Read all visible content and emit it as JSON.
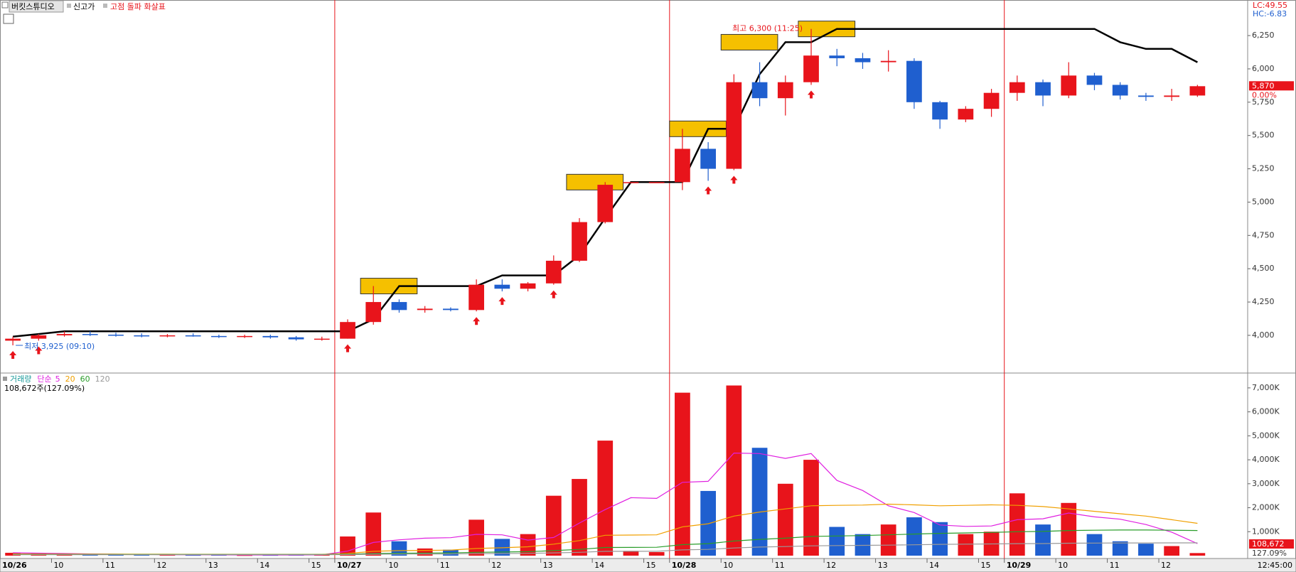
{
  "toolbar": {
    "tabs": [
      "버킷스튜디오",
      "신고가",
      "고점 돌파 화살표"
    ]
  },
  "chart_data": [
    {
      "type": "candlestick",
      "info": [
        "LC:49.55",
        "HC:-6.83"
      ],
      "up_color": "#e8141b",
      "down_color": "#1f5fcf",
      "open": [
        3960,
        3975,
        4000,
        4010,
        4005,
        4000,
        3995,
        4000,
        3995,
        3990,
        3995,
        3985,
        3970,
        3975,
        4100,
        4250,
        4190,
        4200,
        4190,
        4380,
        4350,
        4390,
        4560,
        4850,
        5150,
        5150,
        5150,
        5400,
        5250,
        5900,
        5780,
        5900,
        6100,
        6080,
        6050,
        6060,
        5750,
        5620,
        5700,
        5820,
        5900,
        5800,
        5950,
        5880,
        5800,
        5790,
        5800
      ],
      "high": [
        3990,
        4010,
        4030,
        4030,
        4020,
        4015,
        4010,
        4015,
        4005,
        4005,
        4005,
        3995,
        3990,
        4120,
        4370,
        4270,
        4220,
        4210,
        4420,
        4420,
        4400,
        4600,
        4880,
        5150,
        5150,
        5150,
        5550,
        5450,
        5960,
        6050,
        5950,
        6300,
        6150,
        6120,
        6140,
        6080,
        5760,
        5720,
        5850,
        5950,
        5920,
        6050,
        5970,
        5900,
        5820,
        5850,
        5880
      ],
      "low": [
        3925,
        3960,
        3990,
        3995,
        3990,
        3985,
        3985,
        3990,
        3980,
        3980,
        3975,
        3960,
        3960,
        3975,
        4080,
        4170,
        4170,
        4180,
        4180,
        4330,
        4330,
        4380,
        4550,
        4840,
        5150,
        5150,
        5090,
        5160,
        5240,
        5720,
        5650,
        5880,
        6020,
        6000,
        5980,
        5700,
        5550,
        5600,
        5640,
        5760,
        5720,
        5780,
        5840,
        5770,
        5760,
        5760,
        5790
      ],
      "close": [
        3975,
        4000,
        4010,
        4005,
        4000,
        3995,
        4000,
        3995,
        3990,
        3995,
        3985,
        3970,
        3975,
        4100,
        4250,
        4190,
        4200,
        4190,
        4380,
        4350,
        4390,
        4560,
        4850,
        5130,
        5150,
        5150,
        5400,
        5250,
        5900,
        5780,
        5900,
        6100,
        6080,
        6050,
        6060,
        5750,
        5620,
        5700,
        5820,
        5900,
        5800,
        5950,
        5880,
        5800,
        5790,
        5800,
        5870
      ],
      "high_line": {
        "color": "#000000",
        "values": [
          3990,
          4010,
          4030,
          4030,
          4030,
          4030,
          4030,
          4030,
          4030,
          4030,
          4030,
          4030,
          4030,
          4030,
          4120,
          4370,
          4370,
          4370,
          4370,
          4450,
          4450,
          4450,
          4600,
          4880,
          5150,
          5150,
          5150,
          5550,
          5550,
          5960,
          6200,
          6200,
          6300,
          6300,
          6300,
          6300,
          6300,
          6300,
          6300,
          6300,
          6300,
          6300,
          6300,
          6200,
          6150,
          6150,
          6050
        ]
      },
      "breakout_boxes": {
        "color": "#f5c000",
        "items": [
          {
            "x": 14,
            "y": 4370
          },
          {
            "x": 22,
            "y": 5150
          },
          {
            "x": 26,
            "y": 5550
          },
          {
            "x": 28,
            "y": 6200
          },
          {
            "x": 31,
            "y": 6300
          }
        ]
      },
      "signal_arrows": {
        "color": "#e8141b",
        "x": [
          0,
          1,
          13,
          18,
          19,
          21,
          27,
          28,
          31
        ]
      },
      "annotations": [
        {
          "text": "최고 6,300 (11:25)",
          "x": 31,
          "y": 6300,
          "color": "#e8141b"
        },
        {
          "text": "최저 3,925 (09:10)",
          "x": 0,
          "y": 3925,
          "color": "#1f5fcf"
        }
      ],
      "last": {
        "value": 5870,
        "label": "5,870"
      },
      "change_label": "0.00%",
      "xlim": [
        -0.5,
        47.95
      ],
      "ylim": [
        3717,
        6517
      ],
      "yticks": [
        {
          "value": 4000,
          "label": "4,000"
        },
        {
          "value": 4250,
          "label": "4,250"
        },
        {
          "value": 4500,
          "label": "4,500"
        },
        {
          "value": 4750,
          "label": "4,750"
        },
        {
          "value": 5000,
          "label": "5,000"
        },
        {
          "value": 5250,
          "label": "5,250"
        },
        {
          "value": 5500,
          "label": "5,500"
        },
        {
          "value": 5750,
          "label": "5,750"
        },
        {
          "value": 6000,
          "label": "6,000"
        },
        {
          "value": 6250,
          "label": "6,250"
        }
      ]
    },
    {
      "type": "bar",
      "legend": {
        "title": "거래량",
        "ma_label": "단순"
      },
      "info": "108,672주(127.09%)",
      "values": [
        120000,
        90000,
        60000,
        40000,
        50000,
        30000,
        30000,
        25000,
        30000,
        20000,
        25000,
        30000,
        60000,
        800000,
        1800000,
        600000,
        300000,
        250000,
        1500000,
        700000,
        900000,
        2500000,
        3200000,
        4800000,
        200000,
        150000,
        6800000,
        2700000,
        7100000,
        4500000,
        3000000,
        4000000,
        1200000,
        900000,
        1300000,
        1600000,
        1400000,
        900000,
        1000000,
        2600000,
        1300000,
        2200000,
        900000,
        600000,
        500000,
        400000,
        108672
      ],
      "series": [
        {
          "name": "5",
          "color": "#e020e0",
          "values": [
            120000,
            105000,
            90000,
            72000,
            60000,
            50000,
            40000,
            35000,
            33000,
            27000,
            26000,
            28000,
            33000,
            190000,
            550000,
            660000,
            730000,
            750000,
            890000,
            870000,
            650000,
            760000,
            1360000,
            1920000,
            2420000,
            2390000,
            3060000,
            3100000,
            4280000,
            4260000,
            4060000,
            4260000,
            3140000,
            2720000,
            2080000,
            1800000,
            1280000,
            1220000,
            1240000,
            1500000,
            1540000,
            1780000,
            1620000,
            1520000,
            1300000,
            980000,
            500000
          ]
        },
        {
          "name": "20",
          "color": "#f0a000",
          "values": [
            70000,
            68000,
            66000,
            64000,
            62000,
            60000,
            58000,
            56000,
            55000,
            54000,
            53000,
            52000,
            52000,
            90000,
            180000,
            210000,
            220000,
            230000,
            300000,
            330000,
            370000,
            480000,
            630000,
            850000,
            860000,
            870000,
            1200000,
            1330000,
            1650000,
            1820000,
            1950000,
            2080000,
            2100000,
            2110000,
            2150000,
            2120000,
            2080000,
            2100000,
            2120000,
            2100000,
            2050000,
            1950000,
            1850000,
            1750000,
            1650000,
            1500000,
            1350000
          ]
        },
        {
          "name": "60",
          "color": "#2a9d2a",
          "values": [
            50000,
            50000,
            50000,
            50000,
            50000,
            50000,
            50000,
            50000,
            50000,
            50000,
            50000,
            50000,
            50000,
            60000,
            90000,
            100000,
            110000,
            115000,
            140000,
            150000,
            165000,
            210000,
            260000,
            340000,
            345000,
            350000,
            460000,
            500000,
            610000,
            680000,
            730000,
            800000,
            820000,
            840000,
            870000,
            900000,
            930000,
            950000,
            970000,
            1000000,
            1010000,
            1050000,
            1060000,
            1070000,
            1070000,
            1060000,
            1050000
          ]
        },
        {
          "name": "120",
          "color": "#999999",
          "values": [
            40000,
            40000,
            40000,
            40000,
            40000,
            40000,
            40000,
            40000,
            40000,
            40000,
            40000,
            40000,
            40000,
            45000,
            60000,
            65000,
            70000,
            72000,
            85000,
            90000,
            95000,
            115000,
            140000,
            180000,
            182000,
            185000,
            240000,
            260000,
            320000,
            360000,
            380000,
            410000,
            420000,
            430000,
            440000,
            455000,
            470000,
            480000,
            490000,
            500000,
            505000,
            520000,
            525000,
            530000,
            532000,
            533000,
            534000
          ]
        }
      ],
      "last": {
        "value": 108672,
        "label": "108,672"
      },
      "last_pct": "127.09%",
      "xlim": [
        -0.5,
        47.95
      ],
      "ylim": [
        0,
        7560000
      ],
      "yticks": [
        {
          "value": 1000000,
          "label": "1,000K"
        },
        {
          "value": 2000000,
          "label": "2,000K"
        },
        {
          "value": 3000000,
          "label": "3,000K"
        },
        {
          "value": 4000000,
          "label": "4,000K"
        },
        {
          "value": 5000000,
          "label": "5,000K"
        },
        {
          "value": 6000000,
          "label": "6,000K"
        },
        {
          "value": 7000000,
          "label": "7,000K"
        }
      ],
      "xticks": [
        {
          "value": 0,
          "label": "10/26"
        },
        {
          "value": 2,
          "label": "10"
        },
        {
          "value": 4,
          "label": "11"
        },
        {
          "value": 6,
          "label": "12"
        },
        {
          "value": 8,
          "label": "13"
        },
        {
          "value": 10,
          "label": "14"
        },
        {
          "value": 12,
          "label": "15"
        },
        {
          "value": 13,
          "label": "10/27"
        },
        {
          "value": 15,
          "label": "10"
        },
        {
          "value": 17,
          "label": "11"
        },
        {
          "value": 19,
          "label": "12"
        },
        {
          "value": 21,
          "label": "13"
        },
        {
          "value": 23,
          "label": "14"
        },
        {
          "value": 25,
          "label": "15"
        },
        {
          "value": 26,
          "label": "10/28"
        },
        {
          "value": 28,
          "label": "10"
        },
        {
          "value": 30,
          "label": "11"
        },
        {
          "value": 32,
          "label": "12"
        },
        {
          "value": 34,
          "label": "13"
        },
        {
          "value": 36,
          "label": "14"
        },
        {
          "value": 38,
          "label": "15"
        },
        {
          "value": 39,
          "label": "10/29"
        },
        {
          "value": 41,
          "label": "10"
        },
        {
          "value": 43,
          "label": "11"
        },
        {
          "value": 45,
          "label": "12"
        }
      ],
      "time_label": "12:45:00"
    }
  ]
}
